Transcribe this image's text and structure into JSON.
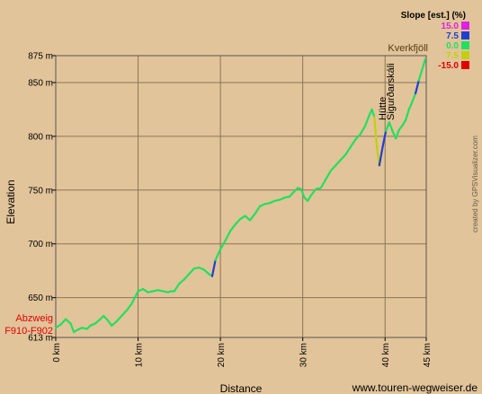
{
  "chart_data": {
    "type": "line",
    "title": "",
    "xlabel": "Distance",
    "ylabel": "Elevation",
    "xlim": [
      0,
      45
    ],
    "ylim": [
      613,
      875
    ],
    "grid": true,
    "x_ticks": [
      {
        "value": 0,
        "label": "0 km"
      },
      {
        "value": 10,
        "label": "10 km"
      },
      {
        "value": 20,
        "label": "20 km"
      },
      {
        "value": 30,
        "label": "30 km"
      },
      {
        "value": 40,
        "label": "40 km"
      },
      {
        "value": 45,
        "label": "45 km"
      }
    ],
    "y_ticks": [
      {
        "value": 613,
        "label": "613 m"
      },
      {
        "value": 650,
        "label": "650 m"
      },
      {
        "value": 700,
        "label": "700 m"
      },
      {
        "value": 750,
        "label": "750 m"
      },
      {
        "value": 800,
        "label": "800 m"
      },
      {
        "value": 850,
        "label": "850 m"
      },
      {
        "value": 875,
        "label": "875 m"
      }
    ],
    "series": [
      {
        "x": [
          0,
          0.6,
          1.2,
          1.8,
          2.2,
          2.6,
          3.2,
          3.8,
          4.2,
          4.8,
          5.4,
          5.8,
          6.2,
          6.8,
          7.4,
          8.0,
          8.6,
          9.2,
          9.6,
          10.0,
          10.6,
          11.2,
          11.8,
          12.4,
          13.0,
          13.6,
          14.0,
          14.4,
          15.0,
          15.6,
          16.2,
          16.8,
          17.4,
          18.0,
          18.6,
          19.0,
          19.4,
          20.0,
          20.6,
          21.2,
          21.8,
          22.4,
          23.0,
          23.6,
          24.2,
          24.8,
          25.4,
          26.0,
          26.6,
          27.2,
          27.8,
          28.4,
          29.0,
          29.4,
          29.8,
          30.2,
          30.6,
          31.0,
          31.6,
          32.2,
          32.8,
          33.4,
          34.0,
          34.6,
          35.2,
          35.8,
          36.4,
          37.0,
          37.6,
          38.0,
          38.4,
          38.7,
          39.0,
          39.3,
          39.7,
          40.1,
          40.5,
          40.9,
          41.3,
          41.7,
          42.1,
          42.5,
          42.9,
          43.3,
          43.7,
          44.1,
          44.5,
          44.9
        ],
        "y": [
          622,
          625,
          630,
          626,
          618,
          620,
          622,
          621,
          624,
          626,
          630,
          633,
          630,
          624,
          628,
          633,
          638,
          644,
          650,
          656,
          658,
          655,
          656,
          657,
          656,
          655,
          656,
          656,
          663,
          667,
          672,
          677,
          678,
          676,
          672,
          670,
          685,
          695,
          703,
          712,
          718,
          723,
          726,
          722,
          728,
          735,
          737,
          738,
          740,
          741,
          743,
          744,
          749,
          752,
          751,
          743,
          740,
          745,
          751,
          752,
          760,
          768,
          773,
          778,
          783,
          790,
          797,
          802,
          810,
          818,
          825,
          818,
          790,
          773,
          790,
          805,
          813,
          805,
          798,
          806,
          810,
          815,
          825,
          832,
          840,
          852,
          862,
          872
        ]
      }
    ],
    "annotations": [
      {
        "text": "Abzweig",
        "color": "#e00000"
      },
      {
        "text": "F910-F902",
        "color": "#e00000"
      },
      {
        "text": "Hütte",
        "color": "#000000"
      },
      {
        "text": "Sigurðarskáli",
        "color": "#000000"
      },
      {
        "text": "Kverkfjöll",
        "color": "#5a3a10"
      }
    ],
    "legend": {
      "title": "Slope [est.] (%)",
      "placement": "top-right",
      "entries": [
        {
          "label": "15.0",
          "color": "#e020e0"
        },
        {
          "label": "7.5",
          "color": "#2040d0"
        },
        {
          "label": "0.0",
          "color": "#20e060"
        },
        {
          "label": "7.5",
          "color": "#c0d010"
        },
        {
          "label": "-15.0",
          "color": "#e00000"
        }
      ]
    },
    "credit": "created by GPSVisualizer.com",
    "website": "www.touren-wegweiser.de"
  }
}
